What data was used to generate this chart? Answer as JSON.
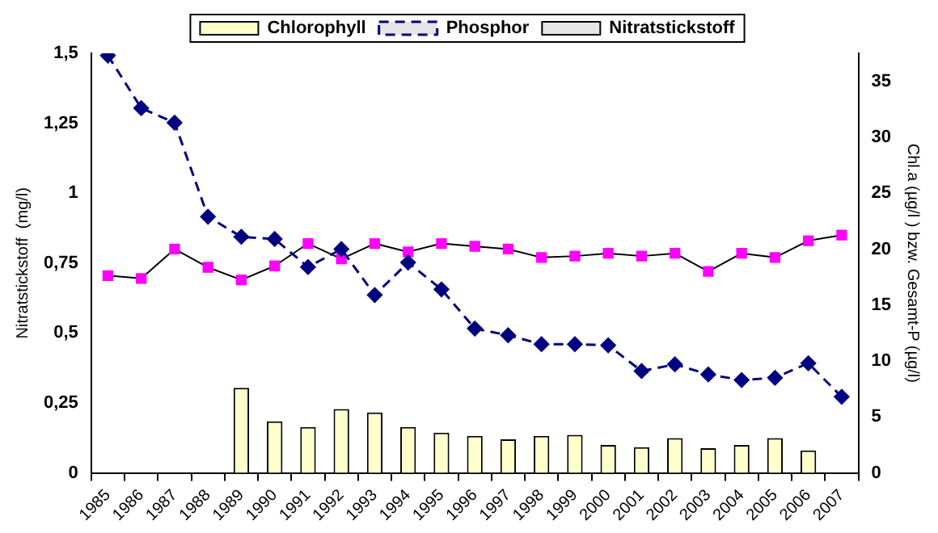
{
  "chart_data": {
    "type": "bar",
    "ylabel": "Nitratstickstoff  (mg/l)",
    "y2label": "Chl.a (µg/l ) bzw. Gesamt-P (µg/l)",
    "categories": [
      "1985",
      "1986",
      "1987",
      "1988",
      "1989",
      "1990",
      "1991",
      "1992",
      "1993",
      "1994",
      "1995",
      "1996",
      "1997",
      "1998",
      "1999",
      "2000",
      "2001",
      "2002",
      "2003",
      "2004",
      "2005",
      "2006",
      "2007"
    ],
    "series": [
      {
        "name": "Chlorophyll",
        "axis": "y2",
        "color": "#ffffcc",
        "values": [
          null,
          null,
          null,
          null,
          7.6,
          4.6,
          4.1,
          5.7,
          5.4,
          4.1,
          3.6,
          3.3,
          3.0,
          3.3,
          3.4,
          2.5,
          2.3,
          3.1,
          2.2,
          2.5,
          3.1,
          2.0,
          null
        ]
      },
      {
        "name": "Phosphor",
        "type": "line",
        "axis": "y2",
        "color": "#000080",
        "marker": "diamond",
        "line_style": "dashed",
        "values": [
          37.3,
          32.6,
          31.3,
          22.9,
          21.1,
          20.9,
          18.4,
          20.0,
          15.9,
          18.8,
          16.4,
          12.9,
          12.3,
          11.5,
          11.5,
          11.4,
          9.1,
          9.7,
          8.8,
          8.3,
          8.5,
          9.8,
          6.8
        ]
      },
      {
        "name": "Nitratstickstoff",
        "type": "line",
        "color": "#ff00ff",
        "marker": "square",
        "line_style": "solid",
        "values": [
          0.705,
          0.695,
          0.8,
          0.735,
          0.69,
          0.74,
          0.82,
          0.765,
          0.82,
          0.79,
          0.82,
          0.81,
          0.8,
          0.77,
          0.775,
          0.785,
          0.775,
          0.785,
          0.72,
          0.785,
          0.77,
          0.83,
          0.85
        ]
      }
    ],
    "ylim": [
      0,
      1.5
    ],
    "yticks": [
      {
        "value": 0,
        "label": "0"
      },
      {
        "value": 0.25,
        "label": "0,25"
      },
      {
        "value": 0.5,
        "label": "0,5"
      },
      {
        "value": 0.75,
        "label": "0,75"
      },
      {
        "value": 1,
        "label": "1"
      },
      {
        "value": 1.25,
        "label": "1,25"
      },
      {
        "value": 1.5,
        "label": "1,5"
      }
    ],
    "y2lim": [
      0,
      37.5
    ],
    "y2ticks": [
      0,
      5,
      10,
      15,
      20,
      25,
      30,
      35
    ],
    "grid": false,
    "legend": "top"
  }
}
